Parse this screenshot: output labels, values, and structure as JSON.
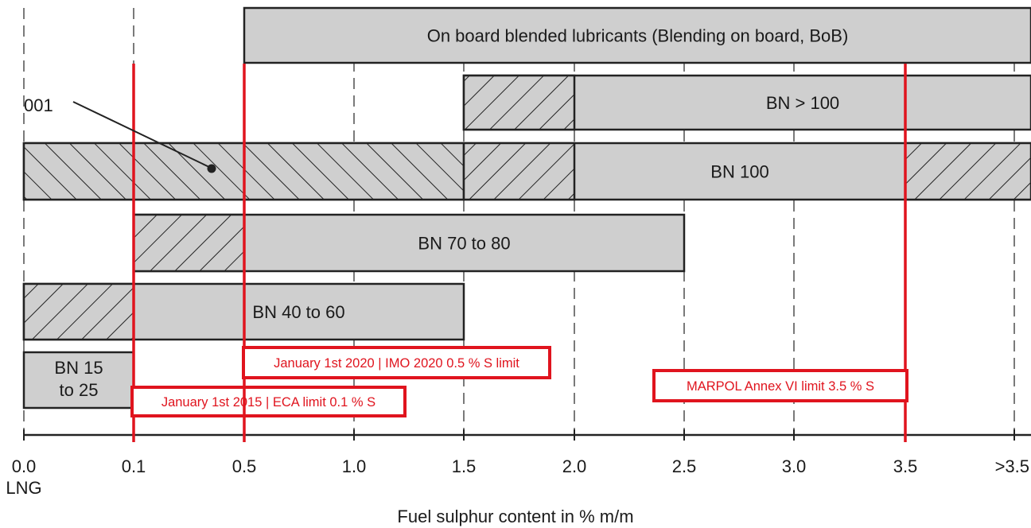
{
  "chart_data": {
    "type": "bar",
    "subtype": "range-timeline",
    "xlabel": "Fuel sulphur content in % m/m",
    "x_ticks": [
      "0.0",
      "0.1",
      "0.5",
      "1.0",
      "1.5",
      "2.0",
      "2.5",
      "3.0",
      "3.5",
      ">3.5"
    ],
    "x_tick_sublabels": [
      "LNG",
      "",
      "",
      "",
      "",
      "",
      "",
      "",
      "",
      ""
    ],
    "grid": "vertical dashed at every tick",
    "bars": [
      {
        "id": "bob",
        "label": "On board blended lubricants (Blending on board, BoB)",
        "start": "0.5",
        "end": ">3.5",
        "open_end": true,
        "hatched": []
      },
      {
        "id": "bn100plus",
        "label": "BN > 100",
        "start": "1.5",
        "end": ">3.5",
        "open_end": true,
        "hatched": [
          {
            "from": "1.5",
            "to": "2.0",
            "pattern": "backslash"
          }
        ]
      },
      {
        "id": "bn100",
        "label": "BN 100",
        "start": "0.0",
        "end": ">3.5",
        "open_end": true,
        "hatched": [
          {
            "from": "0.0",
            "to": "1.5",
            "pattern": "slash"
          },
          {
            "from": "1.5",
            "to": "2.0",
            "pattern": "backslash"
          },
          {
            "from": "3.5",
            "to": ">3.5",
            "pattern": "backslash"
          }
        ]
      },
      {
        "id": "bn70",
        "label": "BN 70 to 80",
        "start": "0.1",
        "end": "2.5",
        "open_end": false,
        "hatched": [
          {
            "from": "0.1",
            "to": "0.5",
            "pattern": "backslash"
          }
        ]
      },
      {
        "id": "bn40",
        "label": "BN 40 to 60",
        "start": "0.0",
        "end": "1.5",
        "open_end": false,
        "hatched": [
          {
            "from": "0.0",
            "to": "0.1",
            "pattern": "backslash"
          }
        ]
      },
      {
        "id": "bn15",
        "label_lines": [
          "BN 15",
          "to 25"
        ],
        "start": "0.0",
        "end": "0.1",
        "open_end": false,
        "hatched": []
      }
    ],
    "limits": [
      {
        "at": "0.1",
        "label": "January 1st 2015 | ECA limit 0.1 % S",
        "color": "#e0141e"
      },
      {
        "at": "0.5",
        "label": "January 1st 2020 | IMO 2020 0.5 % S limit",
        "color": "#e0141e"
      },
      {
        "at": "3.5",
        "label": "MARPOL Annex VI limit 3.5 % S",
        "color": "#e0141e"
      }
    ],
    "annotations": [
      {
        "text": "001",
        "points_to": "BN 100 hatched area at 0.35 % S"
      }
    ],
    "colors": {
      "bar_fill": "#cfcfcf",
      "outline": "#222222",
      "limit": "#e0141e"
    }
  }
}
